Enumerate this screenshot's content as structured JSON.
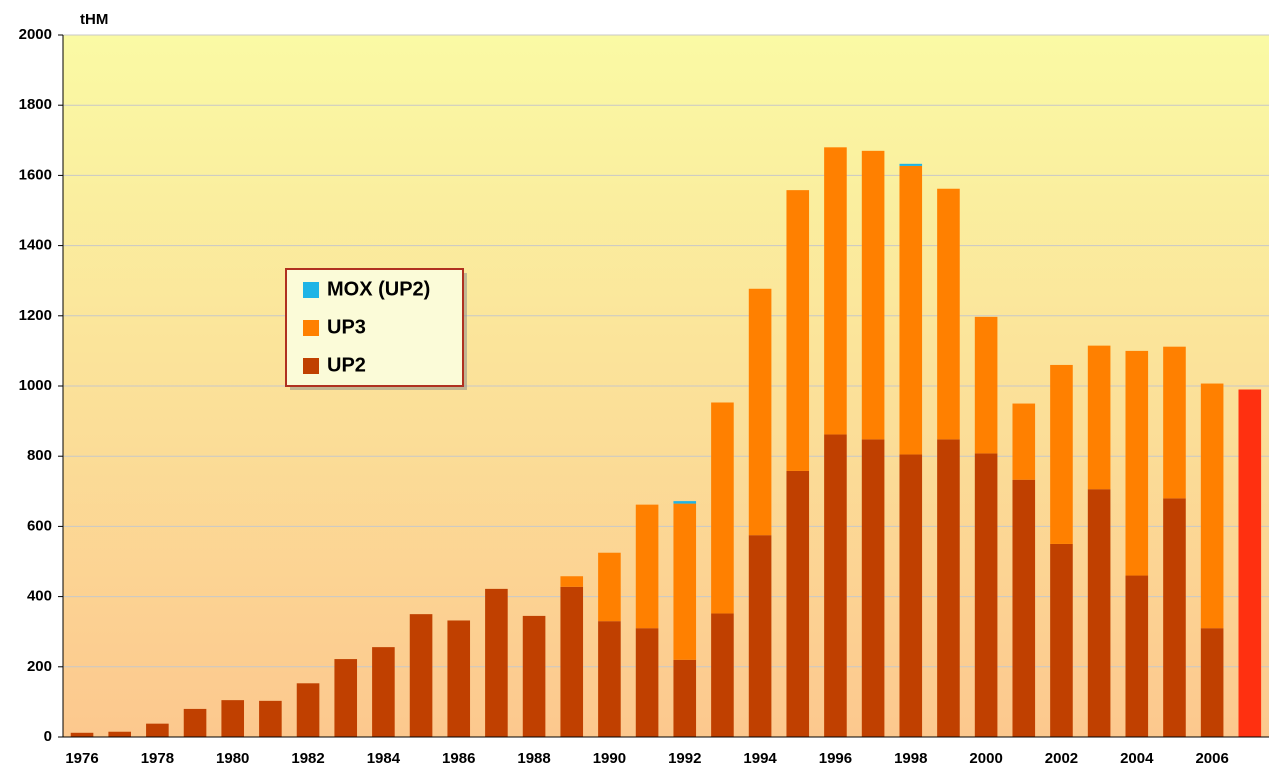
{
  "chart_data": {
    "type": "stacked_bar",
    "y_label": "tHM",
    "categories": [
      "1976",
      null,
      "1978",
      null,
      "1980",
      null,
      "1982",
      null,
      "1984",
      null,
      "1986",
      null,
      "1988",
      null,
      "1990",
      null,
      "1992",
      null,
      "1994",
      null,
      "1996",
      null,
      "1998",
      null,
      "2000",
      null,
      "2002",
      null,
      "2004",
      null,
      "2006",
      null
    ],
    "series": [
      {
        "name": "UP2",
        "color": "#c04000",
        "values": [
          12,
          15,
          38,
          80,
          105,
          103,
          153,
          222,
          256,
          350,
          332,
          422,
          345,
          428,
          330,
          310,
          220,
          352,
          575,
          758,
          862,
          848,
          805,
          848,
          808,
          733,
          550,
          706,
          460,
          680,
          310,
          null
        ]
      },
      {
        "name": "UP3",
        "color": "#ff8000",
        "values": [
          null,
          null,
          null,
          null,
          null,
          null,
          null,
          null,
          null,
          null,
          null,
          null,
          null,
          30,
          195,
          352,
          445,
          601,
          702,
          800,
          818,
          822,
          822,
          714,
          389,
          217,
          510,
          409,
          640,
          432,
          697,
          null
        ]
      },
      {
        "name": "MOX (UP2)",
        "color": "#1eb4e6",
        "values": [
          null,
          null,
          null,
          null,
          null,
          null,
          null,
          null,
          null,
          null,
          null,
          null,
          null,
          null,
          null,
          null,
          7,
          null,
          null,
          null,
          null,
          null,
          6,
          null,
          null,
          null,
          null,
          null,
          null,
          null,
          null,
          null
        ]
      },
      {
        "color": "#ff3010",
        "values": [
          null,
          null,
          null,
          null,
          null,
          null,
          null,
          null,
          null,
          null,
          null,
          null,
          null,
          null,
          null,
          null,
          null,
          null,
          null,
          null,
          null,
          null,
          null,
          null,
          null,
          null,
          null,
          null,
          null,
          null,
          null,
          990
        ]
      }
    ],
    "ylim": [
      0,
      2000
    ],
    "yticks": [
      0,
      200,
      400,
      600,
      800,
      1000,
      1200,
      1400,
      1600,
      1800,
      2000
    ],
    "grid": true
  }
}
